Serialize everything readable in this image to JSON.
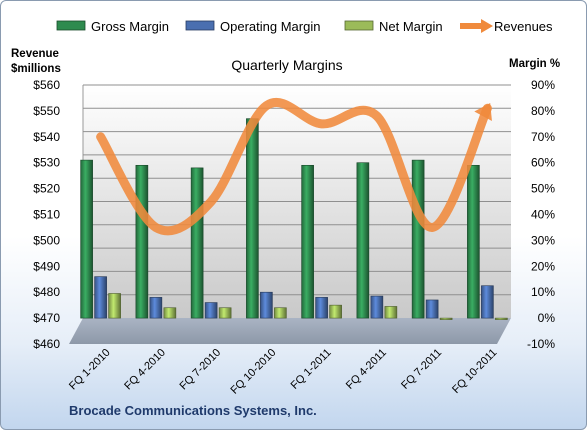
{
  "chart_data": {
    "type": "bar",
    "title": "Quarterly Margins",
    "footer": "Brocade Communications Systems, Inc.",
    "categories": [
      "FQ 1-2010",
      "FQ 4-2010",
      "FQ 7-2010",
      "FQ 10-2010",
      "FQ 1-2011",
      "FQ 4-2011",
      "FQ 7-2011",
      "FQ 10-2011"
    ],
    "left_axis": {
      "label_line1": "Revenue",
      "label_line2": "$millions",
      "min": 460,
      "max": 560,
      "step": 10,
      "tick_prefix": "$"
    },
    "right_axis": {
      "label": "Margin %",
      "min": -10,
      "max": 90,
      "step": 10,
      "tick_suffix": "%"
    },
    "series": [
      {
        "name": "Gross Margin",
        "axis": "right",
        "kind": "bar",
        "color": "#2e8b4f",
        "values": [
          61,
          59,
          58,
          77,
          59,
          60,
          61,
          59
        ]
      },
      {
        "name": "Operating Margin",
        "axis": "right",
        "kind": "bar",
        "color": "#4a6fb0",
        "values": [
          16,
          8,
          6,
          10,
          8,
          8.5,
          7,
          12.5
        ]
      },
      {
        "name": "Net Margin",
        "axis": "right",
        "kind": "bar",
        "color": "#9bbb59",
        "values": [
          9.5,
          4,
          4,
          4,
          5,
          4.5,
          0,
          -0.5
        ]
      },
      {
        "name": "Revenues",
        "axis": "left",
        "kind": "line",
        "color": "#f08a3c",
        "values": [
          540,
          505,
          515,
          552,
          545,
          548,
          505,
          551
        ]
      }
    ],
    "legend_position": "top",
    "grid": true
  }
}
